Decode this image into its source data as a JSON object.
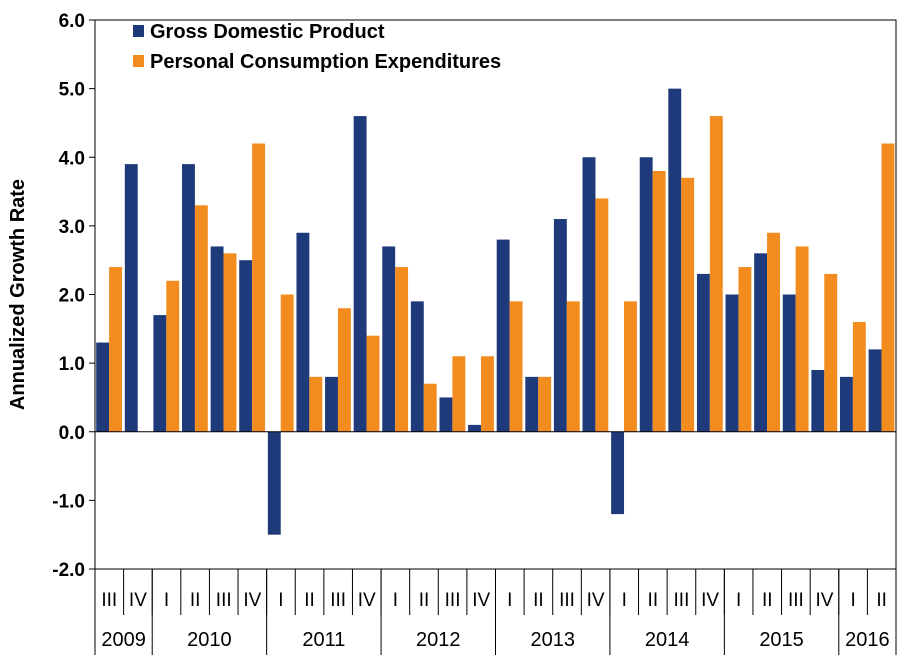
{
  "chart_data": {
    "type": "bar",
    "title": "",
    "xlabel": "",
    "ylabel": "Annualized Growth Rate",
    "ylim": [
      -2.0,
      6.0
    ],
    "yticks": [
      "6.0",
      "5.0",
      "4.0",
      "3.0",
      "2.0",
      "1.0",
      "0.0",
      "-1.0",
      "-2.0"
    ],
    "grid": false,
    "legend_position": "top-left",
    "categories": [
      "III",
      "IV",
      "I",
      "II",
      "III",
      "IV",
      "I",
      "II",
      "III",
      "IV",
      "I",
      "II",
      "III",
      "IV",
      "I",
      "II",
      "III",
      "IV",
      "I",
      "II",
      "III",
      "IV",
      "I",
      "II",
      "III",
      "IV",
      "I",
      "II"
    ],
    "years": [
      {
        "label": "2009",
        "quarters": 2
      },
      {
        "label": "2010",
        "quarters": 4
      },
      {
        "label": "2011",
        "quarters": 4
      },
      {
        "label": "2012",
        "quarters": 4
      },
      {
        "label": "2013",
        "quarters": 4
      },
      {
        "label": "2014",
        "quarters": 4
      },
      {
        "label": "2015",
        "quarters": 4
      },
      {
        "label": "2016",
        "quarters": 2
      }
    ],
    "series": [
      {
        "name": "Gross Domestic Product",
        "color": "#1f3a7a",
        "values": [
          1.3,
          3.9,
          1.7,
          3.9,
          2.7,
          2.5,
          -1.5,
          2.9,
          0.8,
          4.6,
          2.7,
          1.9,
          0.5,
          0.1,
          2.8,
          0.8,
          3.1,
          4.0,
          -1.2,
          4.0,
          5.0,
          2.3,
          2.0,
          2.6,
          2.0,
          0.9,
          0.8,
          1.2
        ]
      },
      {
        "name": "Personal Consumption Expenditures",
        "color": "#f28c1e",
        "values": [
          2.4,
          0.0,
          2.2,
          3.3,
          2.6,
          4.2,
          2.0,
          0.8,
          1.8,
          1.4,
          2.4,
          0.7,
          1.1,
          1.1,
          1.9,
          0.8,
          1.9,
          3.4,
          1.9,
          3.8,
          3.7,
          4.6,
          2.4,
          2.9,
          2.7,
          2.3,
          1.6,
          4.2
        ]
      }
    ]
  }
}
